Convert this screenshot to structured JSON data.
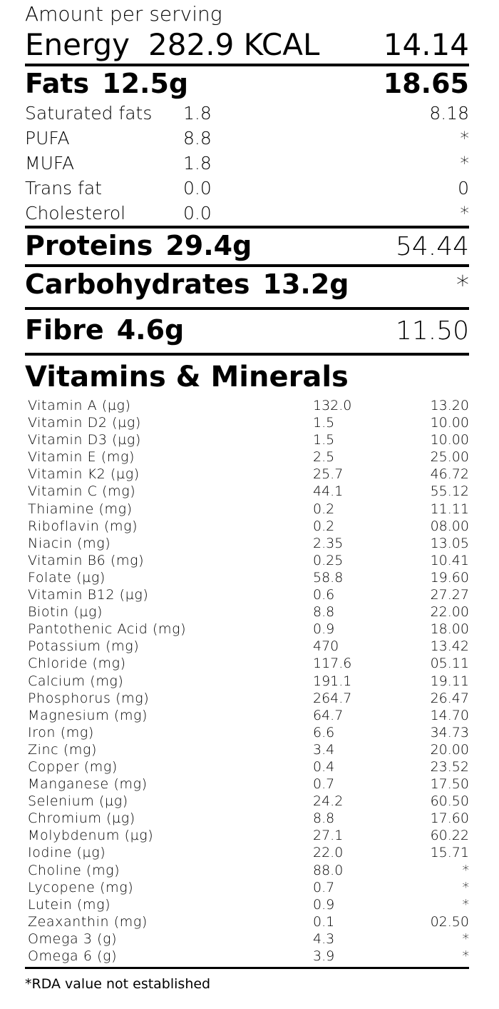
{
  "header": {
    "amount_label": "Amount per serving",
    "energy_label": "Energy",
    "energy_value": "282.9 KCAL",
    "energy_rda": "14.14"
  },
  "fats": {
    "label": "Fats",
    "value": "12.5g",
    "rda": "18.65",
    "items": [
      {
        "name": "Saturated fats",
        "value": "1.8",
        "rda": "8.18"
      },
      {
        "name": "PUFA",
        "value": "8.8",
        "rda": "*"
      },
      {
        "name": "MUFA",
        "value": "1.8",
        "rda": "*"
      },
      {
        "name": "Trans fat",
        "value": "0.0",
        "rda": "0"
      },
      {
        "name": "Cholesterol",
        "value": "0.0",
        "rda": "*"
      }
    ]
  },
  "proteins": {
    "label": "Proteins",
    "value": "29.4g",
    "rda": "54.44"
  },
  "carbs": {
    "label": "Carbohydrates",
    "value": "13.2g",
    "rda": "*"
  },
  "fibre": {
    "label": "Fibre",
    "value": "4.6g",
    "rda": "11.50"
  },
  "vitamins": {
    "title": "Vitamins & Minerals",
    "rows": [
      {
        "name": "Vitamin A (µg)",
        "value": "132.0",
        "rda": "13.20"
      },
      {
        "name": "Vitamin D2 (µg)",
        "value": "1.5",
        "rda": "10.00"
      },
      {
        "name": "Vitamin D3 (µg)",
        "value": "1.5",
        "rda": "10.00"
      },
      {
        "name": "Vitamin E (mg)",
        "value": "2.5",
        "rda": "25.00"
      },
      {
        "name": "Vitamin K2 (µg)",
        "value": "25.7",
        "rda": "46.72"
      },
      {
        "name": "Vitamin C (mg)",
        "value": "44.1",
        "rda": "55.12"
      },
      {
        "name": "Thiamine  (mg)",
        "value": "0.2",
        "rda": "11.11"
      },
      {
        "name": "Riboflavin (mg)",
        "value": "0.2",
        "rda": "08.00"
      },
      {
        "name": "Niacin (mg)",
        "value": "2.35",
        "rda": "13.05"
      },
      {
        "name": "Vitamin B6 (mg)",
        "value": "0.25",
        "rda": "10.41"
      },
      {
        "name": "Folate (µg)",
        "value": "58.8",
        "rda": "19.60"
      },
      {
        "name": "Vitamin B12 (µg)",
        "value": "0.6",
        "rda": "27.27"
      },
      {
        "name": "Biotin (µg)",
        "value": "8.8",
        "rda": "22.00"
      },
      {
        "name": "Pantothenic Acid (mg)",
        "value": "0.9",
        "rda": "18.00"
      },
      {
        "name": "Potassium (mg)",
        "value": "470",
        "rda": "13.42"
      },
      {
        "name": "Chloride (mg)",
        "value": "117.6",
        "rda": "05.11"
      },
      {
        "name": "Calcium (mg)",
        "value": "191.1",
        "rda": "19.11"
      },
      {
        "name": "Phosphorus (mg)",
        "value": "264.7",
        "rda": "26.47"
      },
      {
        "name": "Magnesium (mg)",
        "value": "64.7",
        "rda": "14.70"
      },
      {
        "name": "Iron (mg)",
        "value": "6.6",
        "rda": "34.73"
      },
      {
        "name": "Zinc (mg)",
        "value": "3.4",
        "rda": "20.00"
      },
      {
        "name": "Copper (mg)",
        "value": "0.4",
        "rda": "23.52"
      },
      {
        "name": "Manganese (mg)",
        "value": "0.7",
        "rda": "17.50"
      },
      {
        "name": "Selenium (µg)",
        "value": "24.2",
        "rda": "60.50"
      },
      {
        "name": "Chromium (µg)",
        "value": "8.8",
        "rda": "17.60"
      },
      {
        "name": "Molybdenum (µg)",
        "value": "27.1",
        "rda": "60.22"
      },
      {
        "name": "Iodine (µg)",
        "value": "22.0",
        "rda": "15.71"
      },
      {
        "name": "Choline (mg)",
        "value": "88.0",
        "rda": "*"
      },
      {
        "name": "Lycopene (mg)",
        "value": "0.7",
        "rda": "*"
      },
      {
        "name": "Lutein (mg)",
        "value": "0.9",
        "rda": "*"
      },
      {
        "name": "Zeaxanthin (mg)",
        "value": "0.1",
        "rda": "02.50"
      },
      {
        "name": "Omega 3 (g)",
        "value": "4.3",
        "rda": "*"
      },
      {
        "name": "Omega 6 (g)",
        "value": "3.9",
        "rda": "*"
      }
    ]
  },
  "footnote": "*RDA value not established"
}
